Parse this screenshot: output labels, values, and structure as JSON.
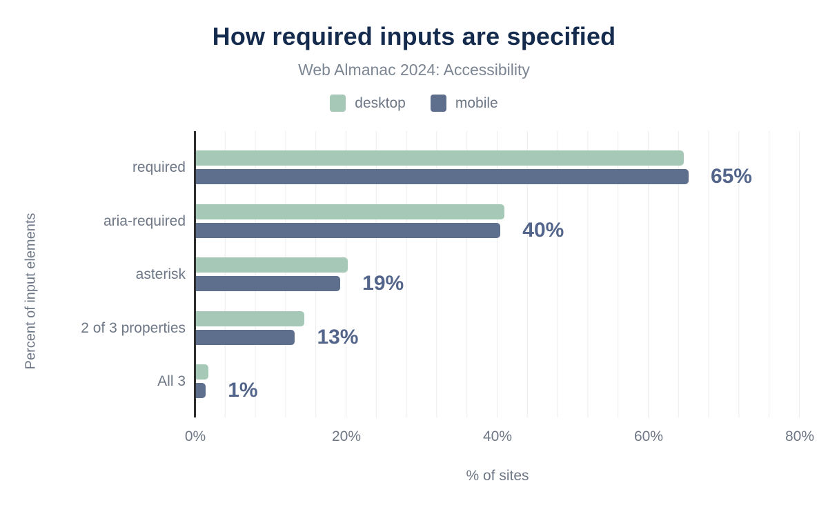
{
  "chart_data": {
    "type": "bar",
    "orientation": "horizontal",
    "title": "How required inputs are specified",
    "subtitle": "Web Almanac 2024: Accessibility",
    "categories": [
      "required",
      "aria-required",
      "asterisk",
      "2 of 3 properties",
      "All 3"
    ],
    "series": [
      {
        "name": "desktop",
        "color": "#a6c8b6",
        "values": [
          64.6,
          40.8,
          20.1,
          14.3,
          1.6
        ]
      },
      {
        "name": "mobile",
        "color": "#5e6e8d",
        "values": [
          65.2,
          40.3,
          19.1,
          13.1,
          1.3
        ]
      }
    ],
    "value_labels": [
      "65%",
      "40%",
      "19%",
      "13%",
      "1%"
    ],
    "xlabel": "% of sites",
    "ylabel": "Percent of input elements",
    "xlim": [
      0,
      80
    ],
    "x_ticks": [
      "0%",
      "20%",
      "40%",
      "60%",
      "80%"
    ],
    "grid": "minor vertical gridlines every 4%",
    "legend_position": "top",
    "colors": {
      "title": "#142b4d",
      "subtitle": "#7c8592",
      "axis_text": "#6e7785",
      "value_label": "#53658a",
      "axis_line": "#2d2d2d",
      "gridline": "#ececec",
      "background": "#ffffff"
    }
  }
}
